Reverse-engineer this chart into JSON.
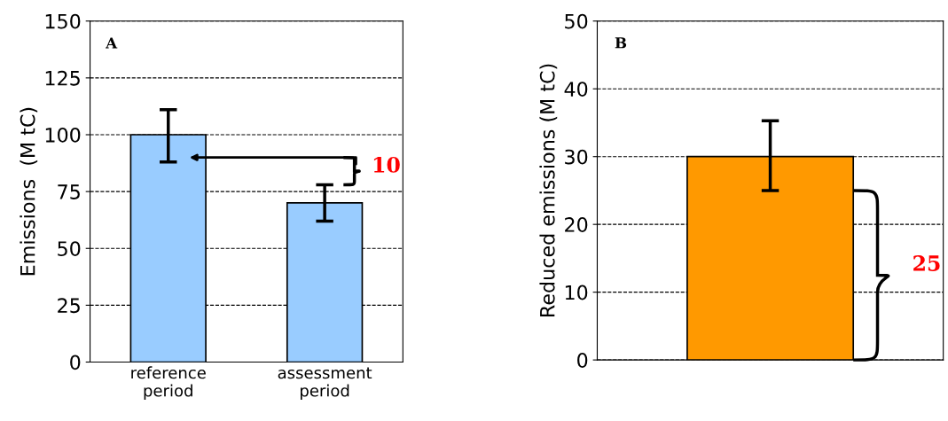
{
  "chart_data": [
    {
      "type": "bar",
      "categories": [
        "reference\nperiod",
        "assessment\nperiod"
      ],
      "ylabel": "Emissions  (M tC)",
      "series": [
        {
          "color": "#99ccff",
          "values": [
            100,
            70
          ],
          "errors": [
            [
              88,
              111
            ],
            [
              62,
              78
            ]
          ]
        }
      ],
      "ylim": [
        0,
        150
      ],
      "yticks": [
        0,
        25,
        50,
        75,
        100,
        125,
        150
      ],
      "grid": "y",
      "legend": false,
      "annotations": [
        "A",
        "10"
      ]
    },
    {
      "type": "bar",
      "categories": [
        null
      ],
      "ylabel": "Reduced emissions (M tC)",
      "series": [
        {
          "color": "#ff9900",
          "values": [
            30
          ],
          "errors": [
            [
              25,
              35.3
            ]
          ]
        }
      ],
      "ylim": [
        0,
        50
      ],
      "yticks": [
        0,
        10,
        20,
        30,
        40,
        50
      ],
      "grid": "y",
      "legend": false,
      "annotations": [
        "B",
        "25"
      ]
    }
  ]
}
